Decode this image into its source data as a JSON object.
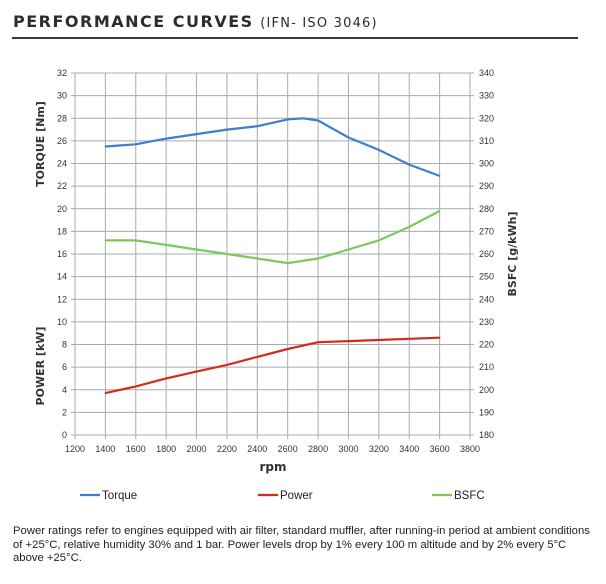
{
  "title": "PERFORMANCE CURVES",
  "subtitle": "(IFN- ISO 3046)",
  "chart_data": {
    "type": "line",
    "xlabel": "rpm",
    "ylabel_left_top": "TORQUE [Nm]",
    "ylabel_left_bottom": "POWER [kW]",
    "ylabel_right": "BSFC  [g/kWh]",
    "xlim": [
      1200,
      3800
    ],
    "ylim_left": [
      0,
      32
    ],
    "ylim_right": [
      180,
      340
    ],
    "x_ticks": [
      1200,
      1400,
      1600,
      1800,
      2000,
      2200,
      2400,
      2600,
      2800,
      3000,
      3200,
      3400,
      3600,
      3800
    ],
    "y_left_ticks": [
      0,
      2,
      4,
      6,
      8,
      10,
      12,
      14,
      16,
      18,
      20,
      22,
      24,
      26,
      28,
      30,
      32
    ],
    "y_right_ticks": [
      180,
      190,
      200,
      210,
      220,
      230,
      240,
      250,
      260,
      270,
      280,
      290,
      300,
      310,
      320,
      330,
      340
    ],
    "grid": true,
    "legend": "bottom",
    "series": [
      {
        "name": "Torque",
        "axis": "left",
        "color": "#3d7fcc",
        "x": [
          1400,
          1600,
          1800,
          2000,
          2200,
          2400,
          2600,
          2700,
          2800,
          3000,
          3200,
          3400,
          3600
        ],
        "values": [
          25.5,
          25.7,
          26.2,
          26.6,
          27.0,
          27.3,
          27.9,
          28.0,
          27.8,
          26.3,
          25.2,
          23.9,
          22.9
        ]
      },
      {
        "name": "Power",
        "axis": "left",
        "color": "#d42a1e",
        "x": [
          1400,
          1600,
          1800,
          2000,
          2200,
          2400,
          2600,
          2800,
          3000,
          3200,
          3400,
          3600
        ],
        "values": [
          3.7,
          4.3,
          5.0,
          5.6,
          6.2,
          6.9,
          7.6,
          8.2,
          8.3,
          8.4,
          8.5,
          8.6
        ]
      },
      {
        "name": "BSFC",
        "axis": "right",
        "color": "#7cc85a",
        "x": [
          1400,
          1600,
          1800,
          2000,
          2200,
          2400,
          2600,
          2800,
          3000,
          3200,
          3400,
          3600
        ],
        "values": [
          266,
          266,
          264,
          262,
          260,
          258,
          256,
          258,
          262,
          266,
          272,
          279
        ]
      }
    ]
  },
  "footnote": "Power ratings refer to engines equipped with air filter, standard muffler, after running-in period at ambient conditions of +25°C, relative humidity 30% and 1 bar. Power levels drop by 1% every 100 m altitude and by 2% every 5°C above +25°C."
}
